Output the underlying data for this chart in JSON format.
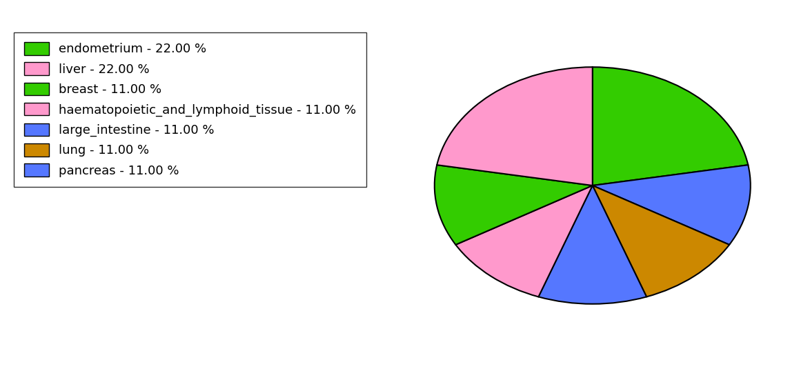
{
  "labels": [
    "endometrium",
    "pancreas",
    "lung",
    "large_intestine",
    "haematopoietic_and_lymphoid_tissue",
    "breast",
    "liver"
  ],
  "values": [
    22,
    11,
    11,
    11,
    11,
    11,
    22
  ],
  "colors": [
    "#33cc00",
    "#5577ff",
    "#cc8800",
    "#5577ff",
    "#ff99cc",
    "#33cc00",
    "#ff99cc"
  ],
  "legend_labels": [
    "endometrium - 22.00 %",
    "liver - 22.00 %",
    "breast - 11.00 %",
    "haematopoietic_and_lymphoid_tissue - 11.00 %",
    "large_intestine - 11.00 %",
    "lung - 11.00 %",
    "pancreas - 11.00 %"
  ],
  "legend_colors": [
    "#33cc00",
    "#ff99cc",
    "#33cc00",
    "#ff99cc",
    "#5577ff",
    "#cc8800",
    "#5577ff"
  ],
  "startangle": 90,
  "figsize": [
    11.45,
    5.38
  ],
  "dpi": 100,
  "background_color": "#ffffff",
  "legend_fontsize": 13
}
